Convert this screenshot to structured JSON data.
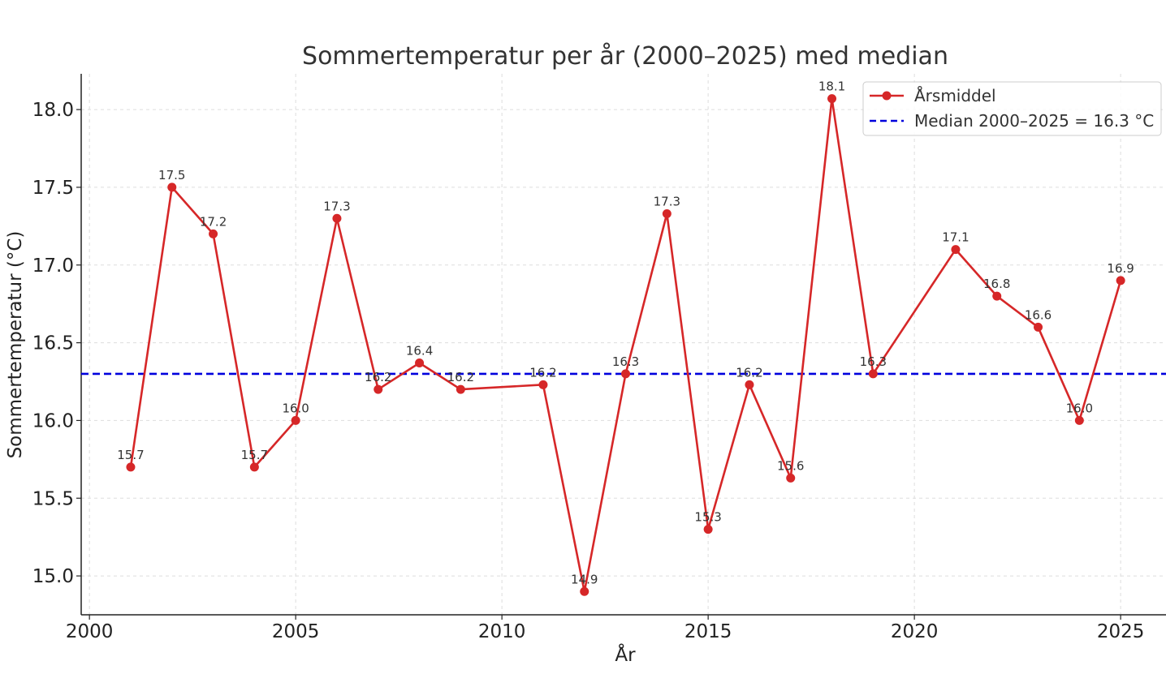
{
  "chart_data": {
    "type": "line",
    "title": "Sommertemperatur per år (2000–2025) med median",
    "xlabel": "År",
    "ylabel": "Sommertemperatur (°C)",
    "xlim": [
      1999.8,
      2026.1
    ],
    "ylim": [
      14.75,
      18.23
    ],
    "xticks": [
      2000,
      2005,
      2010,
      2015,
      2020,
      2025
    ],
    "xtick_labels": [
      "2000",
      "2005",
      "2010",
      "2015",
      "2020",
      "2025"
    ],
    "yticks": [
      15.0,
      15.5,
      16.0,
      16.5,
      17.0,
      17.5,
      18.0
    ],
    "ytick_labels": [
      "15.0",
      "15.5",
      "16.0",
      "16.5",
      "17.0",
      "17.5",
      "18.0"
    ],
    "grid": true,
    "legend_position": "top-right",
    "series": [
      {
        "name": "Årsmiddel",
        "color": "#d62728",
        "style": "line-with-markers",
        "x": [
          2001,
          2002,
          2003,
          2004,
          2005,
          2006,
          2007,
          2008,
          2009,
          2011,
          2012,
          2013,
          2014,
          2015,
          2016,
          2017,
          2018,
          2019,
          2021,
          2022,
          2023,
          2024,
          2025
        ],
        "y": [
          15.7,
          17.5,
          17.2,
          15.7,
          16.0,
          17.3,
          16.2,
          16.37,
          16.2,
          16.23,
          14.9,
          16.3,
          17.33,
          15.3,
          16.23,
          15.63,
          18.07,
          16.3,
          17.1,
          16.8,
          16.6,
          16.0,
          16.9
        ],
        "labels": [
          "15.7",
          "17.5",
          "17.2",
          "15.7",
          "16.0",
          "17.3",
          "16.2",
          "16.4",
          "16.2",
          "16.2",
          "14.9",
          "16.3",
          "17.3",
          "15.3",
          "16.2",
          "15.6",
          "18.1",
          "16.3",
          "17.1",
          "16.8",
          "16.6",
          "16.0",
          "16.9"
        ]
      }
    ],
    "reference_lines": [
      {
        "name": "Median 2000–2025 = 16.3 °C",
        "value": 16.3,
        "color": "#0000dd",
        "style": "dashed"
      }
    ]
  }
}
